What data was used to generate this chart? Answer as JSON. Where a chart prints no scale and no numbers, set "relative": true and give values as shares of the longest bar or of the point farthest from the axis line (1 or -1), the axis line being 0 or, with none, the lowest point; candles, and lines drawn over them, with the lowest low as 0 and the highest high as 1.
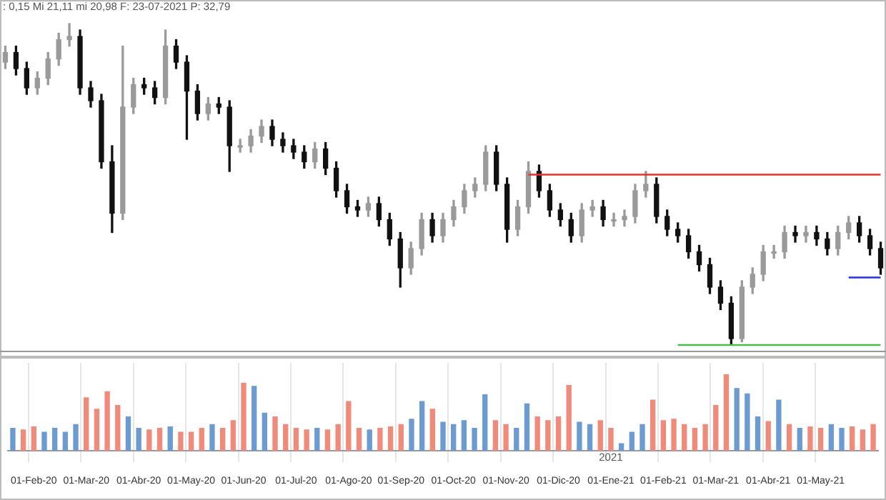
{
  "chart_data": [
    {
      "type": "candlestick",
      "relative": true,
      "annotations": [
        ": 0,15 Mi 21,11 mi 20,98 F: 23-07-2021 P: 32,79"
      ],
      "categories": [
        null,
        null,
        null,
        null,
        null,
        null,
        null,
        null,
        null,
        null,
        null,
        null,
        null,
        null,
        null,
        null,
        null,
        null,
        null,
        null,
        null,
        null,
        null,
        null,
        null,
        null,
        null,
        null,
        null,
        null,
        null,
        null,
        null,
        null,
        null,
        null,
        null,
        null,
        null,
        null,
        null,
        null,
        null,
        null,
        null,
        null,
        null,
        null,
        null,
        null,
        null,
        null,
        null,
        null,
        null,
        null,
        null,
        null,
        null,
        null,
        null,
        null,
        null,
        null,
        null,
        null,
        null,
        null,
        null,
        null,
        null,
        null,
        null,
        null,
        null,
        null,
        null,
        null,
        null,
        null,
        null,
        null,
        null
      ],
      "ohlc": [
        [
          0.88,
          0.93,
          0.86,
          0.91
        ],
        [
          0.91,
          0.93,
          0.84,
          0.86
        ],
        [
          0.86,
          0.88,
          0.78,
          0.8
        ],
        [
          0.8,
          0.85,
          0.78,
          0.83
        ],
        [
          0.83,
          0.91,
          0.81,
          0.89
        ],
        [
          0.89,
          0.97,
          0.87,
          0.95
        ],
        [
          0.95,
          1,
          0.93,
          0.96
        ],
        [
          0.96,
          0.98,
          0.78,
          0.8
        ],
        [
          0.8,
          0.82,
          0.74,
          0.76
        ],
        [
          0.76,
          0.78,
          0.55,
          0.57
        ],
        [
          0.57,
          0.62,
          0.35,
          0.41
        ],
        [
          0.41,
          0.93,
          0.39,
          0.74
        ],
        [
          0.74,
          0.83,
          0.72,
          0.81
        ],
        [
          0.81,
          0.83,
          0.78,
          0.8
        ],
        [
          0.8,
          0.82,
          0.75,
          0.77
        ],
        [
          0.77,
          0.98,
          0.75,
          0.93
        ],
        [
          0.93,
          0.95,
          0.86,
          0.88
        ],
        [
          0.88,
          0.9,
          0.64,
          0.79
        ],
        [
          0.79,
          0.81,
          0.7,
          0.72
        ],
        [
          0.72,
          0.77,
          0.7,
          0.75
        ],
        [
          0.75,
          0.77,
          0.72,
          0.74
        ],
        [
          0.74,
          0.76,
          0.54,
          0.62
        ],
        [
          0.62,
          0.64,
          0.6,
          0.62
        ],
        [
          0.62,
          0.67,
          0.6,
          0.65
        ],
        [
          0.65,
          0.7,
          0.63,
          0.68
        ],
        [
          0.68,
          0.7,
          0.62,
          0.64
        ],
        [
          0.64,
          0.66,
          0.6,
          0.62
        ],
        [
          0.62,
          0.64,
          0.58,
          0.6
        ],
        [
          0.6,
          0.62,
          0.55,
          0.57
        ],
        [
          0.57,
          0.63,
          0.55,
          0.61
        ],
        [
          0.61,
          0.63,
          0.53,
          0.55
        ],
        [
          0.55,
          0.57,
          0.46,
          0.48
        ],
        [
          0.48,
          0.5,
          0.41,
          0.43
        ],
        [
          0.43,
          0.45,
          0.4,
          0.42
        ],
        [
          0.42,
          0.46,
          0.4,
          0.44
        ],
        [
          0.44,
          0.46,
          0.37,
          0.39
        ],
        [
          0.39,
          0.41,
          0.31,
          0.33
        ],
        [
          0.33,
          0.35,
          0.18,
          0.24
        ],
        [
          0.24,
          0.32,
          0.22,
          0.3
        ],
        [
          0.3,
          0.41,
          0.28,
          0.39
        ],
        [
          0.39,
          0.41,
          0.32,
          0.34
        ],
        [
          0.34,
          0.41,
          0.32,
          0.39
        ],
        [
          0.39,
          0.45,
          0.37,
          0.43
        ],
        [
          0.43,
          0.5,
          0.41,
          0.48
        ],
        [
          0.48,
          0.52,
          0.46,
          0.5
        ],
        [
          0.5,
          0.62,
          0.48,
          0.6
        ],
        [
          0.6,
          0.62,
          0.48,
          0.5
        ],
        [
          0.5,
          0.52,
          0.32,
          0.36
        ],
        [
          0.36,
          0.45,
          0.34,
          0.43
        ],
        [
          0.43,
          0.57,
          0.41,
          0.54
        ],
        [
          0.54,
          0.56,
          0.46,
          0.48
        ],
        [
          0.48,
          0.5,
          0.4,
          0.42
        ],
        [
          0.42,
          0.44,
          0.37,
          0.39
        ],
        [
          0.39,
          0.41,
          0.32,
          0.34
        ],
        [
          0.34,
          0.44,
          0.32,
          0.42
        ],
        [
          0.42,
          0.45,
          0.4,
          0.43
        ],
        [
          0.43,
          0.45,
          0.37,
          0.39
        ],
        [
          0.39,
          0.41,
          0.37,
          0.39
        ],
        [
          0.39,
          0.42,
          0.37,
          0.4
        ],
        [
          0.4,
          0.5,
          0.38,
          0.48
        ],
        [
          0.48,
          0.54,
          0.46,
          0.5
        ],
        [
          0.5,
          0.52,
          0.38,
          0.4
        ],
        [
          0.4,
          0.42,
          0.34,
          0.36
        ],
        [
          0.36,
          0.38,
          0.32,
          0.34
        ],
        [
          0.34,
          0.36,
          0.27,
          0.29
        ],
        [
          0.29,
          0.31,
          0.23,
          0.25
        ],
        [
          0.25,
          0.27,
          0.16,
          0.18
        ],
        [
          0.18,
          0.2,
          0.11,
          0.13
        ],
        [
          0.13,
          0.15,
          0,
          0.02
        ],
        [
          0.02,
          0.2,
          0.01,
          0.18
        ],
        [
          0.18,
          0.24,
          0.16,
          0.22
        ],
        [
          0.22,
          0.31,
          0.2,
          0.29
        ],
        [
          0.29,
          0.31,
          0.27,
          0.29
        ],
        [
          0.29,
          0.37,
          0.27,
          0.35
        ],
        [
          0.35,
          0.37,
          0.32,
          0.34
        ],
        [
          0.34,
          0.37,
          0.32,
          0.35
        ],
        [
          0.35,
          0.37,
          0.31,
          0.33
        ],
        [
          0.33,
          0.35,
          0.28,
          0.3
        ],
        [
          0.3,
          0.37,
          0.28,
          0.35
        ],
        [
          0.35,
          0.4,
          0.33,
          0.38
        ],
        [
          0.38,
          0.4,
          0.32,
          0.34
        ],
        [
          0.34,
          0.36,
          0.28,
          0.3
        ],
        [
          0.3,
          0.32,
          0.22,
          0.24
        ]
      ],
      "series": [
        {
          "type": "line",
          "color": "#e8302a",
          "values": [
            null,
            null,
            null,
            null,
            null,
            null,
            null,
            null,
            null,
            null,
            null,
            null,
            null,
            null,
            null,
            null,
            null,
            null,
            null,
            null,
            null,
            null,
            null,
            null,
            null,
            null,
            null,
            null,
            null,
            null,
            null,
            null,
            null,
            null,
            null,
            null,
            null,
            null,
            null,
            null,
            null,
            null,
            null,
            null,
            null,
            null,
            null,
            null,
            null,
            0.53,
            0.53,
            0.53,
            0.53,
            0.53,
            0.53,
            0.53,
            0.53,
            0.53,
            0.53,
            0.53,
            0.53,
            0.53,
            0.53,
            0.53,
            0.53,
            0.53,
            0.53,
            0.53,
            0.53,
            0.53,
            0.53,
            0.53,
            0.53,
            0.53,
            0.53,
            0.53,
            0.53,
            0.53,
            0.53,
            0.53,
            0.53,
            0.53,
            0.53
          ]
        },
        {
          "type": "line",
          "color": "#4cbb4c",
          "values": [
            null,
            null,
            null,
            null,
            null,
            null,
            null,
            null,
            null,
            null,
            null,
            null,
            null,
            null,
            null,
            null,
            null,
            null,
            null,
            null,
            null,
            null,
            null,
            null,
            null,
            null,
            null,
            null,
            null,
            null,
            null,
            null,
            null,
            null,
            null,
            null,
            null,
            null,
            null,
            null,
            null,
            null,
            null,
            null,
            null,
            null,
            null,
            null,
            null,
            null,
            null,
            null,
            null,
            null,
            null,
            null,
            null,
            null,
            null,
            null,
            null,
            null,
            null,
            0,
            0,
            0,
            0,
            0,
            0,
            0,
            0,
            0,
            0,
            0,
            0,
            0,
            0,
            0,
            0,
            0,
            0,
            0,
            0
          ]
        },
        {
          "type": "line",
          "color": "#2233dd",
          "values": [
            null,
            null,
            null,
            null,
            null,
            null,
            null,
            null,
            null,
            null,
            null,
            null,
            null,
            null,
            null,
            null,
            null,
            null,
            null,
            null,
            null,
            null,
            null,
            null,
            null,
            null,
            null,
            null,
            null,
            null,
            null,
            null,
            null,
            null,
            null,
            null,
            null,
            null,
            null,
            null,
            null,
            null,
            null,
            null,
            null,
            null,
            null,
            null,
            null,
            null,
            null,
            null,
            null,
            null,
            null,
            null,
            null,
            null,
            null,
            null,
            null,
            null,
            null,
            null,
            null,
            null,
            null,
            null,
            null,
            null,
            null,
            null,
            null,
            null,
            null,
            null,
            null,
            null,
            null,
            0.21,
            0.21,
            0.21,
            0.21
          ]
        }
      ]
    },
    {
      "type": "bar",
      "relative": true,
      "grid": "x",
      "annotations": [
        {
          "text": "2021",
          "x": "01-Ene-21"
        }
      ],
      "categories": [
        null,
        null,
        "01-Feb-20",
        null,
        null,
        null,
        null,
        "01-Mar-20",
        null,
        null,
        null,
        null,
        "01-Abr-20",
        null,
        null,
        null,
        null,
        "01-May-20",
        null,
        null,
        null,
        null,
        "01-Jun-20",
        null,
        null,
        null,
        null,
        "01-Jul-20",
        null,
        null,
        null,
        null,
        "01-Ago-20",
        null,
        null,
        null,
        null,
        "01-Sep-20",
        null,
        null,
        null,
        null,
        "01-Oct-20",
        null,
        null,
        null,
        null,
        "01-Nov-20",
        null,
        null,
        null,
        null,
        "01-Dic-20",
        null,
        null,
        null,
        null,
        "01-Ene-21",
        null,
        null,
        null,
        null,
        "01-Feb-21",
        null,
        null,
        null,
        null,
        "01-Mar-21",
        null,
        null,
        null,
        null,
        "01-Abr-21",
        null,
        null,
        null,
        null,
        "01-May-21",
        null,
        null,
        null,
        null,
        null
      ],
      "values": [
        0.3,
        0.28,
        0.32,
        0.25,
        0.3,
        0.25,
        0.35,
        0.7,
        0.55,
        0.78,
        0.6,
        0.45,
        0.3,
        0.28,
        0.3,
        0.32,
        0.25,
        0.25,
        0.3,
        0.35,
        0.3,
        0.4,
        0.89,
        0.85,
        0.5,
        0.45,
        0.35,
        0.3,
        0.28,
        0.3,
        0.28,
        0.35,
        0.65,
        0.3,
        0.28,
        0.3,
        0.32,
        0.35,
        0.42,
        0.65,
        0.55,
        0.38,
        0.35,
        0.4,
        0.3,
        0.74,
        0.4,
        0.35,
        0.3,
        0.62,
        0.45,
        0.4,
        0.45,
        0.86,
        0.38,
        0.35,
        0.4,
        0.3,
        0.1,
        0.25,
        0.35,
        0.67,
        0.4,
        0.42,
        0.35,
        0.3,
        0.35,
        0.6,
        1,
        0.82,
        0.75,
        0.45,
        0.39,
        0.67,
        0.35,
        0.3,
        0.32,
        0.3,
        0.35,
        0.3,
        0.32,
        0.28,
        0.35
      ],
      "colors": [
        "#6b9bd1",
        "#f08a7a",
        "#f08a7a",
        "#6b9bd1",
        "#6b9bd1",
        "#6b9bd1",
        "#6b9bd1",
        "#f08a7a",
        "#f08a7a",
        "#f08a7a",
        "#f08a7a",
        "#6b9bd1",
        "#6b9bd1",
        "#f08a7a",
        "#f08a7a",
        "#6b9bd1",
        "#f08a7a",
        "#f08a7a",
        "#f08a7a",
        "#6b9bd1",
        "#f08a7a",
        "#f08a7a",
        "#f08a7a",
        "#6b9bd1",
        "#6b9bd1",
        "#f08a7a",
        "#f08a7a",
        "#f08a7a",
        "#f08a7a",
        "#6b9bd1",
        "#f08a7a",
        "#f08a7a",
        "#f08a7a",
        "#f08a7a",
        "#6b9bd1",
        "#f08a7a",
        "#f08a7a",
        "#f08a7a",
        "#6b9bd1",
        "#6b9bd1",
        "#f08a7a",
        "#6b9bd1",
        "#6b9bd1",
        "#6b9bd1",
        "#6b9bd1",
        "#6b9bd1",
        "#f08a7a",
        "#f08a7a",
        "#6b9bd1",
        "#6b9bd1",
        "#f08a7a",
        "#f08a7a",
        "#f08a7a",
        "#f08a7a",
        "#6b9bd1",
        "#6b9bd1",
        "#f08a7a",
        "#f08a7a",
        "#6b9bd1",
        "#6b9bd1",
        "#6b9bd1",
        "#f08a7a",
        "#f08a7a",
        "#f08a7a",
        "#f08a7a",
        "#f08a7a",
        "#f08a7a",
        "#f08a7a",
        "#f08a7a",
        "#6b9bd1",
        "#6b9bd1",
        "#6b9bd1",
        "#f08a7a",
        "#6b9bd1",
        "#f08a7a",
        "#6b9bd1",
        "#f08a7a",
        "#f08a7a",
        "#6b9bd1",
        "#6b9bd1",
        "#f08a7a",
        "#f08a7a",
        "#f08a7a"
      ]
    }
  ]
}
